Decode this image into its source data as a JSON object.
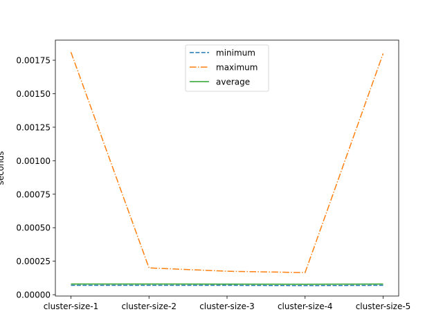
{
  "chart_data": {
    "type": "line",
    "title": "",
    "xlabel": "",
    "ylabel": "seconds",
    "categories": [
      "cluster-size-1",
      "cluster-size-2",
      "cluster-size-3",
      "cluster-size-4",
      "cluster-size-5"
    ],
    "ylim": [
      -1e-05,
      0.0019
    ],
    "yticks": [
      0.0,
      0.00025,
      0.0005,
      0.00075,
      0.001,
      0.00125,
      0.0015,
      0.00175
    ],
    "ytick_labels": [
      "0.00000",
      "0.00025",
      "0.00050",
      "0.00075",
      "0.00100",
      "0.00125",
      "0.00150",
      "0.00175"
    ],
    "grid": false,
    "legend_position": "top-center",
    "series": [
      {
        "name": "minimum",
        "color": "#1f77b4",
        "style": "dashed",
        "values": [
          7e-05,
          7e-05,
          7e-05,
          6.8e-05,
          7e-05
        ]
      },
      {
        "name": "maximum",
        "color": "#ff7f0e",
        "style": "dashdot",
        "values": [
          0.00181,
          0.0002,
          0.000175,
          0.000165,
          0.0018
        ]
      },
      {
        "name": "average",
        "color": "#2ca02c",
        "style": "solid",
        "values": [
          8e-05,
          8e-05,
          7.9e-05,
          7.8e-05,
          8e-05
        ]
      }
    ]
  }
}
